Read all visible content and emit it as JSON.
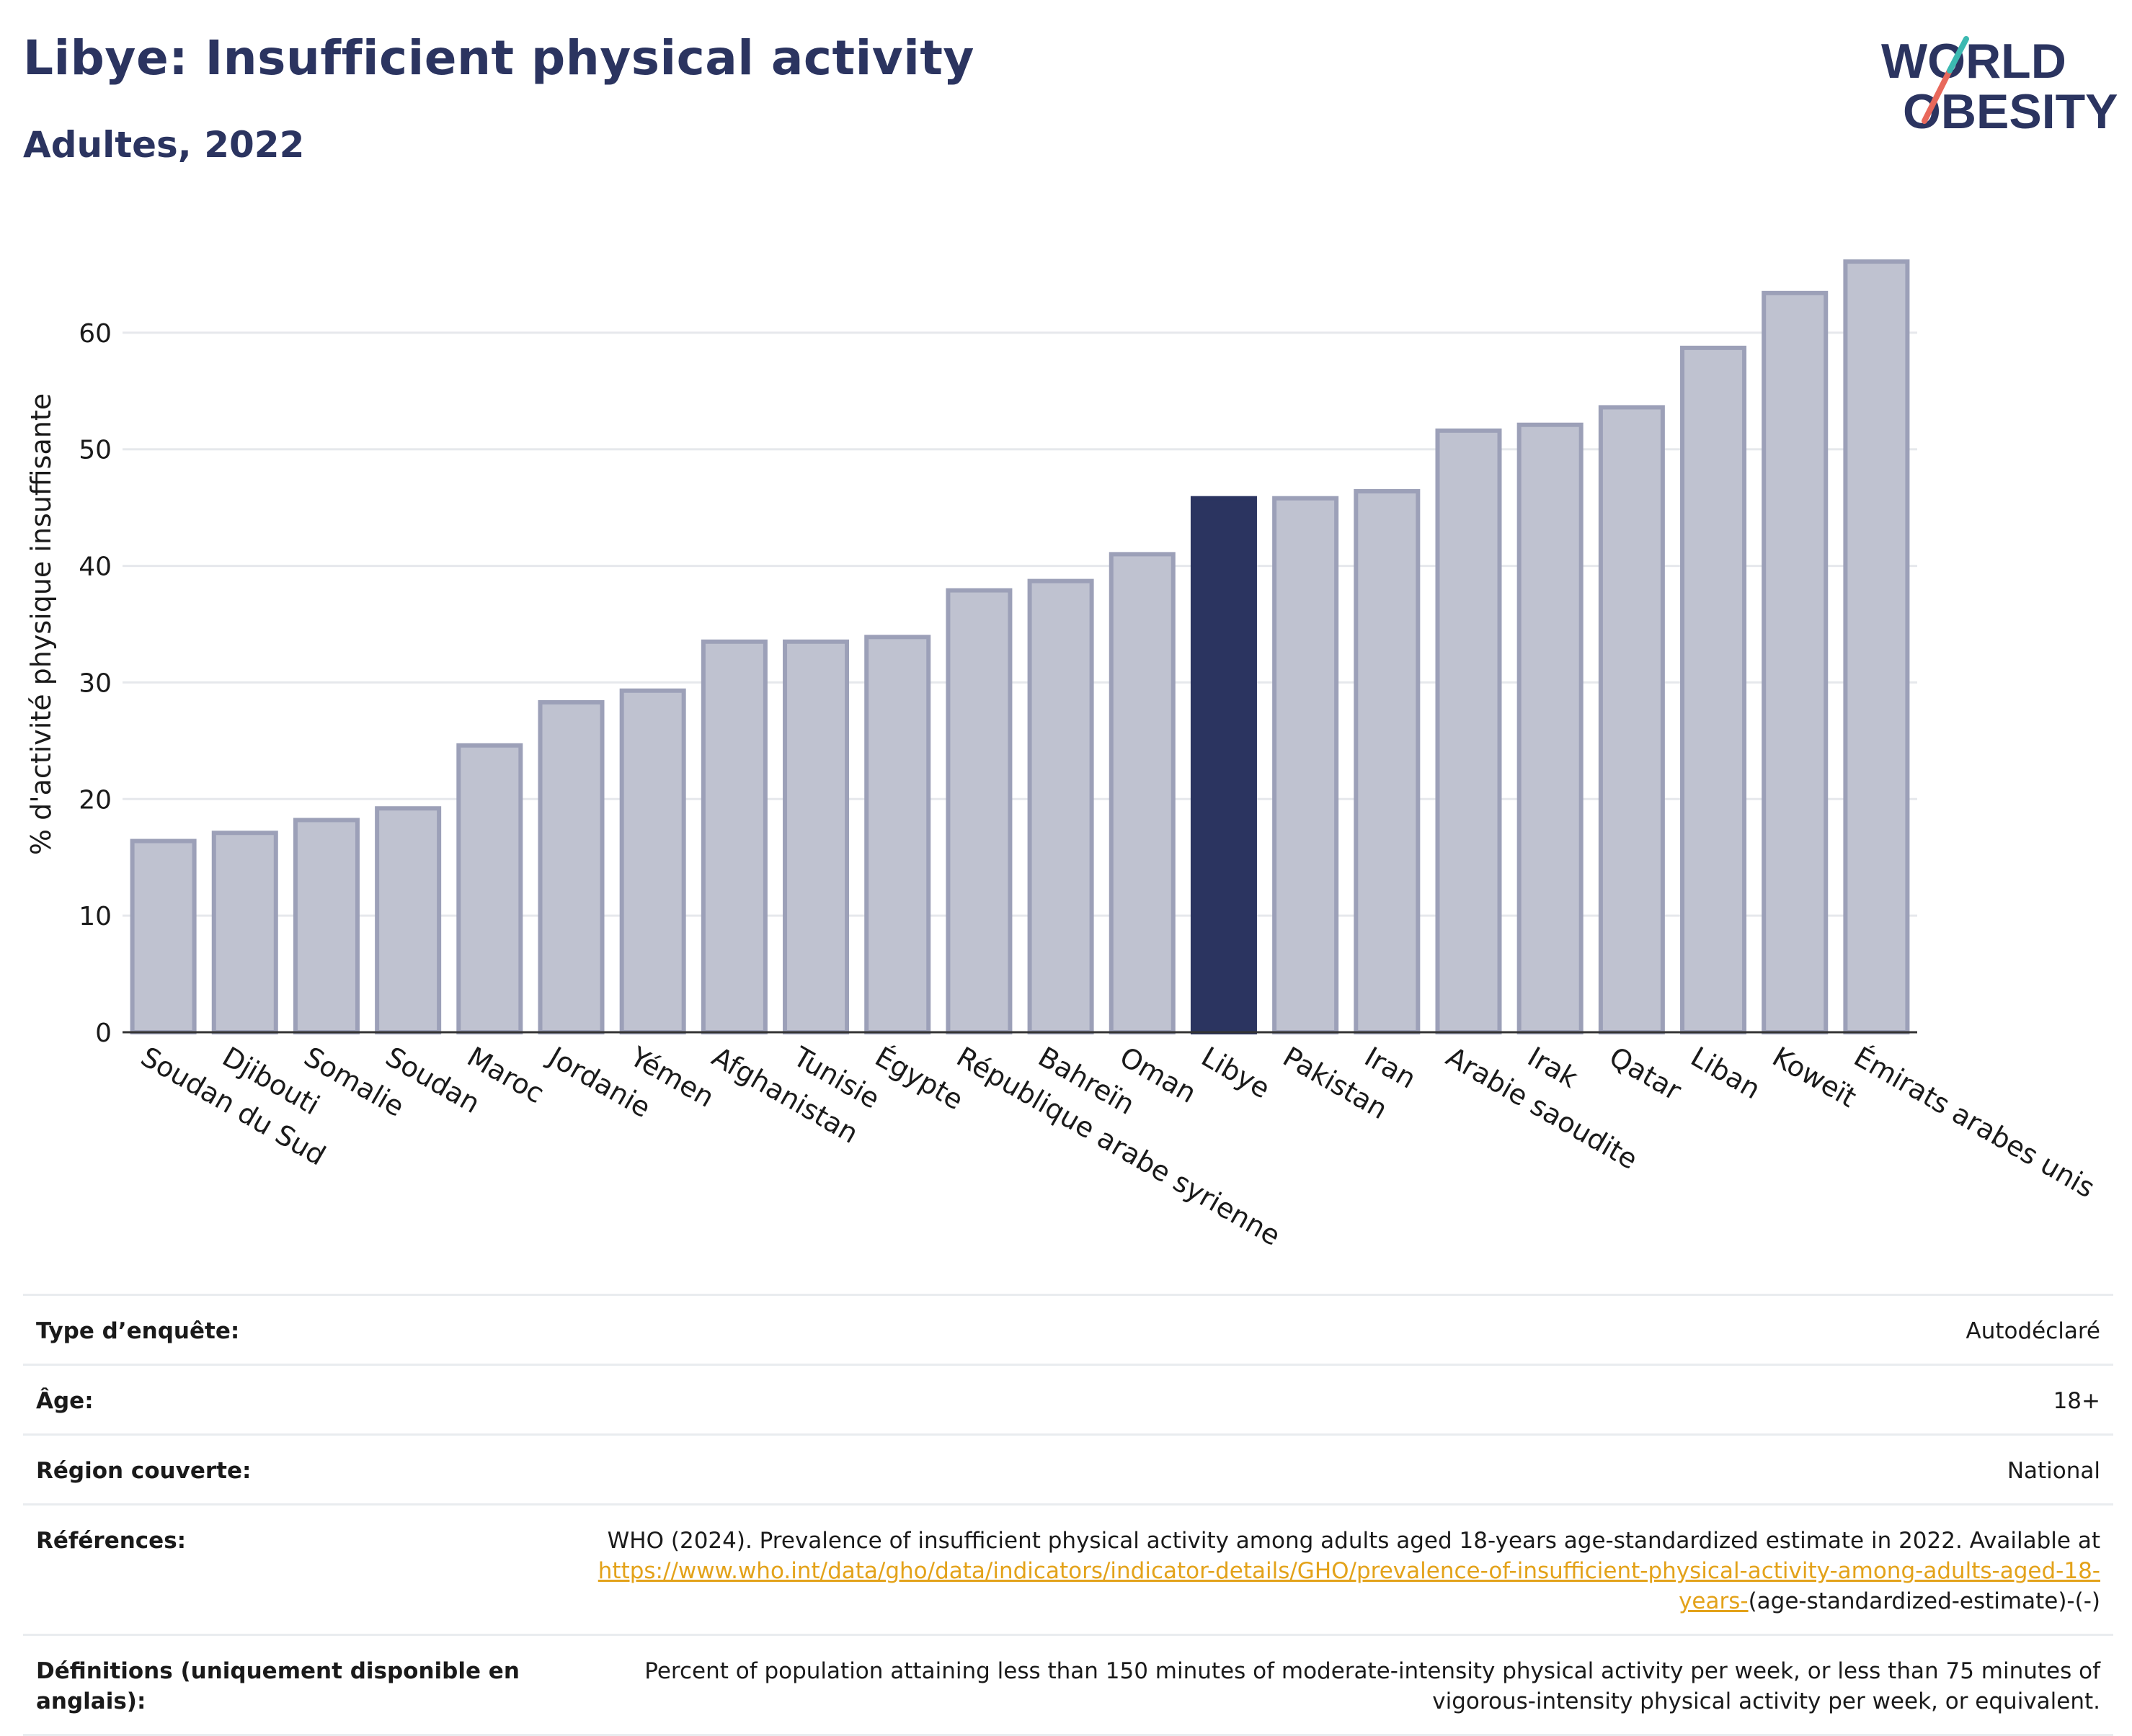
{
  "header": {
    "title": "Libye: Insufficient physical activity",
    "subtitle": "Adultes, 2022"
  },
  "logo": {
    "line1": "WORLD",
    "line2": "OBESITY"
  },
  "colors": {
    "highlight": "#2b3460",
    "bar": "#bfc2d0",
    "bar_border": "#9ca0b8",
    "accent_link": "#e3a21a"
  },
  "chart_data": {
    "type": "bar",
    "ylabel": "% d'activité physique insuffisante",
    "ylim": [
      0,
      70
    ],
    "yticks": [
      0,
      10,
      20,
      30,
      40,
      50,
      60
    ],
    "grid": true,
    "highlight": "Libye",
    "categories": [
      "Soudan du Sud",
      "Djibouti",
      "Somalie",
      "Soudan",
      "Maroc",
      "Jordanie",
      "Yémen",
      "Afghanistan",
      "Tunisie",
      "Égypte",
      "République arabe syrienne",
      "Bahreïn",
      "Oman",
      "Libye",
      "Pakistan",
      "Iran",
      "Arabie saoudite",
      "Irak",
      "Qatar",
      "Liban",
      "Koweït",
      "Émirats arabes unis"
    ],
    "values": [
      16.4,
      17.1,
      18.2,
      19.2,
      24.6,
      28.3,
      29.3,
      33.5,
      33.5,
      33.9,
      37.9,
      38.7,
      41.0,
      45.8,
      45.8,
      46.4,
      51.6,
      52.1,
      53.6,
      58.7,
      63.4,
      66.1
    ]
  },
  "info": [
    {
      "label": "Type d’enquête:",
      "value": "Autodéclaré"
    },
    {
      "label": "Âge:",
      "value": "18+"
    },
    {
      "label": "Région couverte:",
      "value": "National"
    },
    {
      "label": "Références:",
      "value": "WHO (2024). Prevalence of insufficient physical activity among adults aged 18-years age-standardized estimate in 2022. Available at ",
      "link": "https://www.who.int/data/gho/data/indicators/indicator-details/GHO/prevalence-of-insufficient-physical-activity-among-adults-aged-18-years-",
      "value_after": "(age-standardized-estimate)-(-)"
    },
    {
      "label": "Définitions (uniquement disponible en anglais):",
      "value": "Percent of population attaining less than 150 minutes of moderate-intensity physical activity per week, or less than 75 minutes of vigorous-intensity physical activity per week, or equivalent."
    }
  ]
}
